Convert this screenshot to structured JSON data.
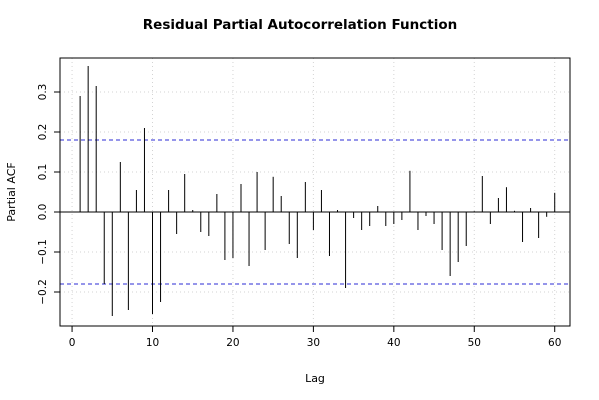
{
  "chart_data": {
    "type": "bar",
    "title": "Residual Partial Autocorrelation Function",
    "xlabel": "Lag",
    "ylabel": "Partial ACF",
    "xlim": [
      -1.5,
      61.9
    ],
    "ylim": [
      -0.285,
      0.385
    ],
    "x_ticks": [
      0,
      10,
      20,
      30,
      40,
      50,
      60
    ],
    "y_ticks": [
      -0.2,
      -0.1,
      0.0,
      0.1,
      0.2,
      0.3
    ],
    "y_tick_labels": [
      "−0.2",
      "−0.1",
      "0.0",
      "0.1",
      "0.2",
      "0.3"
    ],
    "grid": true,
    "confidence_band": 0.18,
    "series": [
      {
        "x": [
          1,
          2,
          3,
          4,
          5,
          6,
          7,
          8,
          9,
          10,
          11,
          12,
          13,
          14,
          15,
          16,
          17,
          18,
          19,
          20,
          21,
          22,
          23,
          24,
          25,
          26,
          27,
          28,
          29,
          30,
          31,
          32,
          33,
          34,
          35,
          36,
          37,
          38,
          39,
          40,
          41,
          42,
          43,
          44,
          45,
          46,
          47,
          48,
          49,
          50,
          51,
          52,
          53,
          54,
          55,
          56,
          57,
          58,
          59,
          60
        ],
        "values": [
          0.29,
          0.365,
          0.315,
          -0.18,
          -0.26,
          0.125,
          -0.245,
          0.055,
          0.21,
          -0.255,
          -0.225,
          0.055,
          -0.055,
          0.095,
          0.005,
          -0.05,
          -0.06,
          0.045,
          -0.12,
          -0.115,
          0.07,
          -0.135,
          0.1,
          -0.095,
          0.088,
          0.04,
          -0.08,
          -0.115,
          0.075,
          -0.045,
          0.055,
          -0.11,
          0.005,
          -0.19,
          -0.015,
          -0.045,
          -0.035,
          0.015,
          -0.035,
          -0.03,
          -0.02,
          0.103,
          -0.045,
          -0.01,
          -0.03,
          -0.095,
          -0.16,
          -0.125,
          -0.085,
          0.002,
          0.09,
          -0.03,
          0.035,
          0.062,
          0.003,
          -0.075,
          0.01,
          -0.065,
          -0.012,
          0.048
        ]
      }
    ]
  }
}
